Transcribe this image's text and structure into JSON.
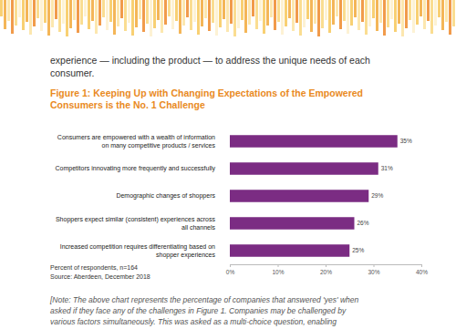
{
  "document": {
    "intro": [
      "experience — including the product — to address the unique needs of each",
      "consumer."
    ],
    "note": [
      "[Note: The above chart represents the percentage of companies that answered 'yes' when",
      "asked if they face any of the challenges in Figure 1. Companies may be challenged by",
      "various factors simultaneously. This was asked as a multi-choice question, enabling"
    ]
  },
  "chart_data": {
    "type": "bar",
    "orientation": "horizontal",
    "title": "Figure 1: Keeping Up with Changing Expectations of the Empowered\nConsumers is the No. 1 Challenge",
    "categories": [
      "Consumers are empowered with a wealth of information\non many competitive products / services",
      "Competitors innovating more frequently and successfully",
      "Demographic changes of shoppers",
      "Shoppers expect similar (consistent) experiences across\nall channels",
      "Increased competition requires differentiating based on\nshopper experiences"
    ],
    "values": [
      35,
      31,
      29,
      26,
      25
    ],
    "value_labels": [
      "35%",
      "31%",
      "29%",
      "26%",
      "25%"
    ],
    "data_labels": true,
    "color": "#7b2c83",
    "xlim": [
      0,
      40
    ],
    "xticks": [
      {
        "value": 0,
        "label": "0%"
      },
      {
        "value": 10,
        "label": "10%"
      },
      {
        "value": 20,
        "label": "20%"
      },
      {
        "value": 30,
        "label": "30%"
      },
      {
        "value": 40,
        "label": "40%"
      }
    ],
    "annotations": [
      "Percent of respondents, n=164",
      "Source: Aberdeen, December 2018"
    ]
  }
}
